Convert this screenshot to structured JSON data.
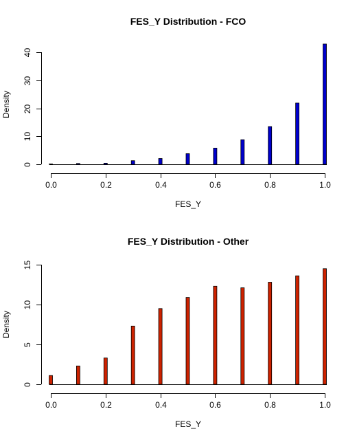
{
  "chart_data": [
    {
      "type": "bar",
      "title": "FES_Y Distribution - FCO",
      "xlabel": "FES_Y",
      "ylabel": "Density",
      "x": [
        0.0,
        0.1,
        0.2,
        0.3,
        0.4,
        0.5,
        0.6,
        0.7,
        0.8,
        0.9,
        1.0
      ],
      "values": [
        0.1,
        0.3,
        0.4,
        1.3,
        2.1,
        3.8,
        5.8,
        8.8,
        13.5,
        21.9,
        43.0
      ],
      "xlim": [
        0,
        1
      ],
      "ylim": [
        0,
        43
      ],
      "xticks": [
        "0.0",
        "0.2",
        "0.4",
        "0.6",
        "0.8",
        "1.0"
      ],
      "yticks": [
        "0",
        "10",
        "20",
        "30",
        "40"
      ],
      "color": "#0000cc",
      "grid": false
    },
    {
      "type": "bar",
      "title": "FES_Y Distribution - Other",
      "xlabel": "FES_Y",
      "ylabel": "Density",
      "x": [
        0.0,
        0.1,
        0.2,
        0.3,
        0.4,
        0.5,
        0.6,
        0.7,
        0.8,
        0.9,
        1.0
      ],
      "values": [
        1.1,
        2.3,
        3.3,
        7.3,
        9.5,
        10.9,
        12.3,
        12.1,
        12.8,
        13.6,
        14.5
      ],
      "xlim": [
        0,
        1
      ],
      "ylim": [
        0,
        15
      ],
      "xticks": [
        "0.0",
        "0.2",
        "0.4",
        "0.6",
        "0.8",
        "1.0"
      ],
      "yticks": [
        "0",
        "5",
        "10",
        "15"
      ],
      "color": "#cc2200",
      "grid": false
    }
  ]
}
